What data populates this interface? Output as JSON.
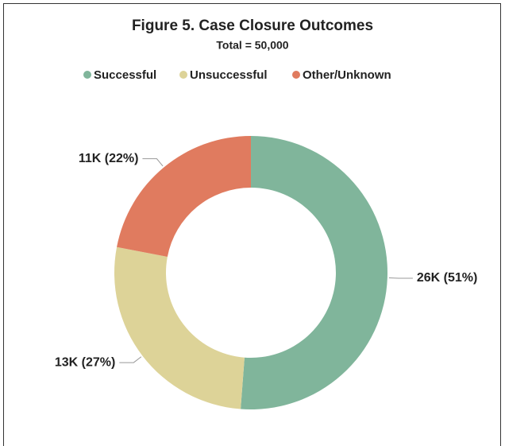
{
  "chart_data": {
    "type": "donut",
    "title": "Figure 5. Case Closure Outcomes",
    "subtitle": "Total = 50,000",
    "categories": [
      "Successful",
      "Unsuccessful",
      "Other/Unknown"
    ],
    "values": [
      25600,
      13400,
      11000
    ],
    "value_labels": [
      "26K (51%)",
      "13K (27%)",
      "11K (22%)"
    ],
    "colors": [
      "#80b59b",
      "#ddd398",
      "#e07b5f"
    ],
    "legend": "top"
  }
}
